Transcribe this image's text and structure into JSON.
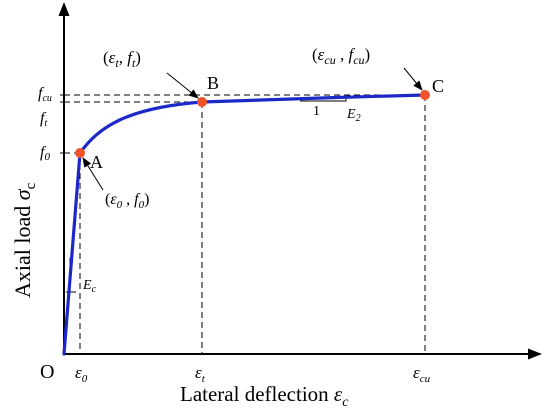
{
  "axes": {
    "origin_label": "O",
    "y_label": "Axial load",
    "y_symbol": "σ",
    "y_symbol_sub": "c",
    "x_label": "Lateral deflection",
    "x_symbol": "ε",
    "x_symbol_sub": "c"
  },
  "y_ticks": [
    {
      "base": "f",
      "sub": "cu"
    },
    {
      "base": "f",
      "sub": "t"
    },
    {
      "base": "f",
      "sub": "0"
    }
  ],
  "x_ticks": [
    {
      "base": "ε",
      "sub": "0"
    },
    {
      "base": "ε",
      "sub": "t"
    },
    {
      "base": "ε",
      "sub": "cu"
    }
  ],
  "points": [
    {
      "name": "A",
      "coords": {
        "e": "ε",
        "e_sub": "0",
        "sep": " , ",
        "f": "f",
        "f_sub": "0"
      }
    },
    {
      "name": "B",
      "coords": {
        "e": "ε",
        "e_sub": "t",
        "sep": ", ",
        "f": "f",
        "f_sub": "t"
      }
    },
    {
      "name": "C",
      "coords": {
        "e": "ε",
        "e_sub": "cu",
        "sep": " , ",
        "f": "f",
        "f_sub": "cu"
      }
    }
  ],
  "slope_labels": {
    "initial": {
      "base": "E",
      "sub": "c"
    },
    "hardening": {
      "base": "E",
      "sub": "2"
    },
    "run": "1"
  },
  "colors": {
    "curve": "#1d28c9",
    "points": "#f0522a",
    "axes": "#000000"
  }
}
